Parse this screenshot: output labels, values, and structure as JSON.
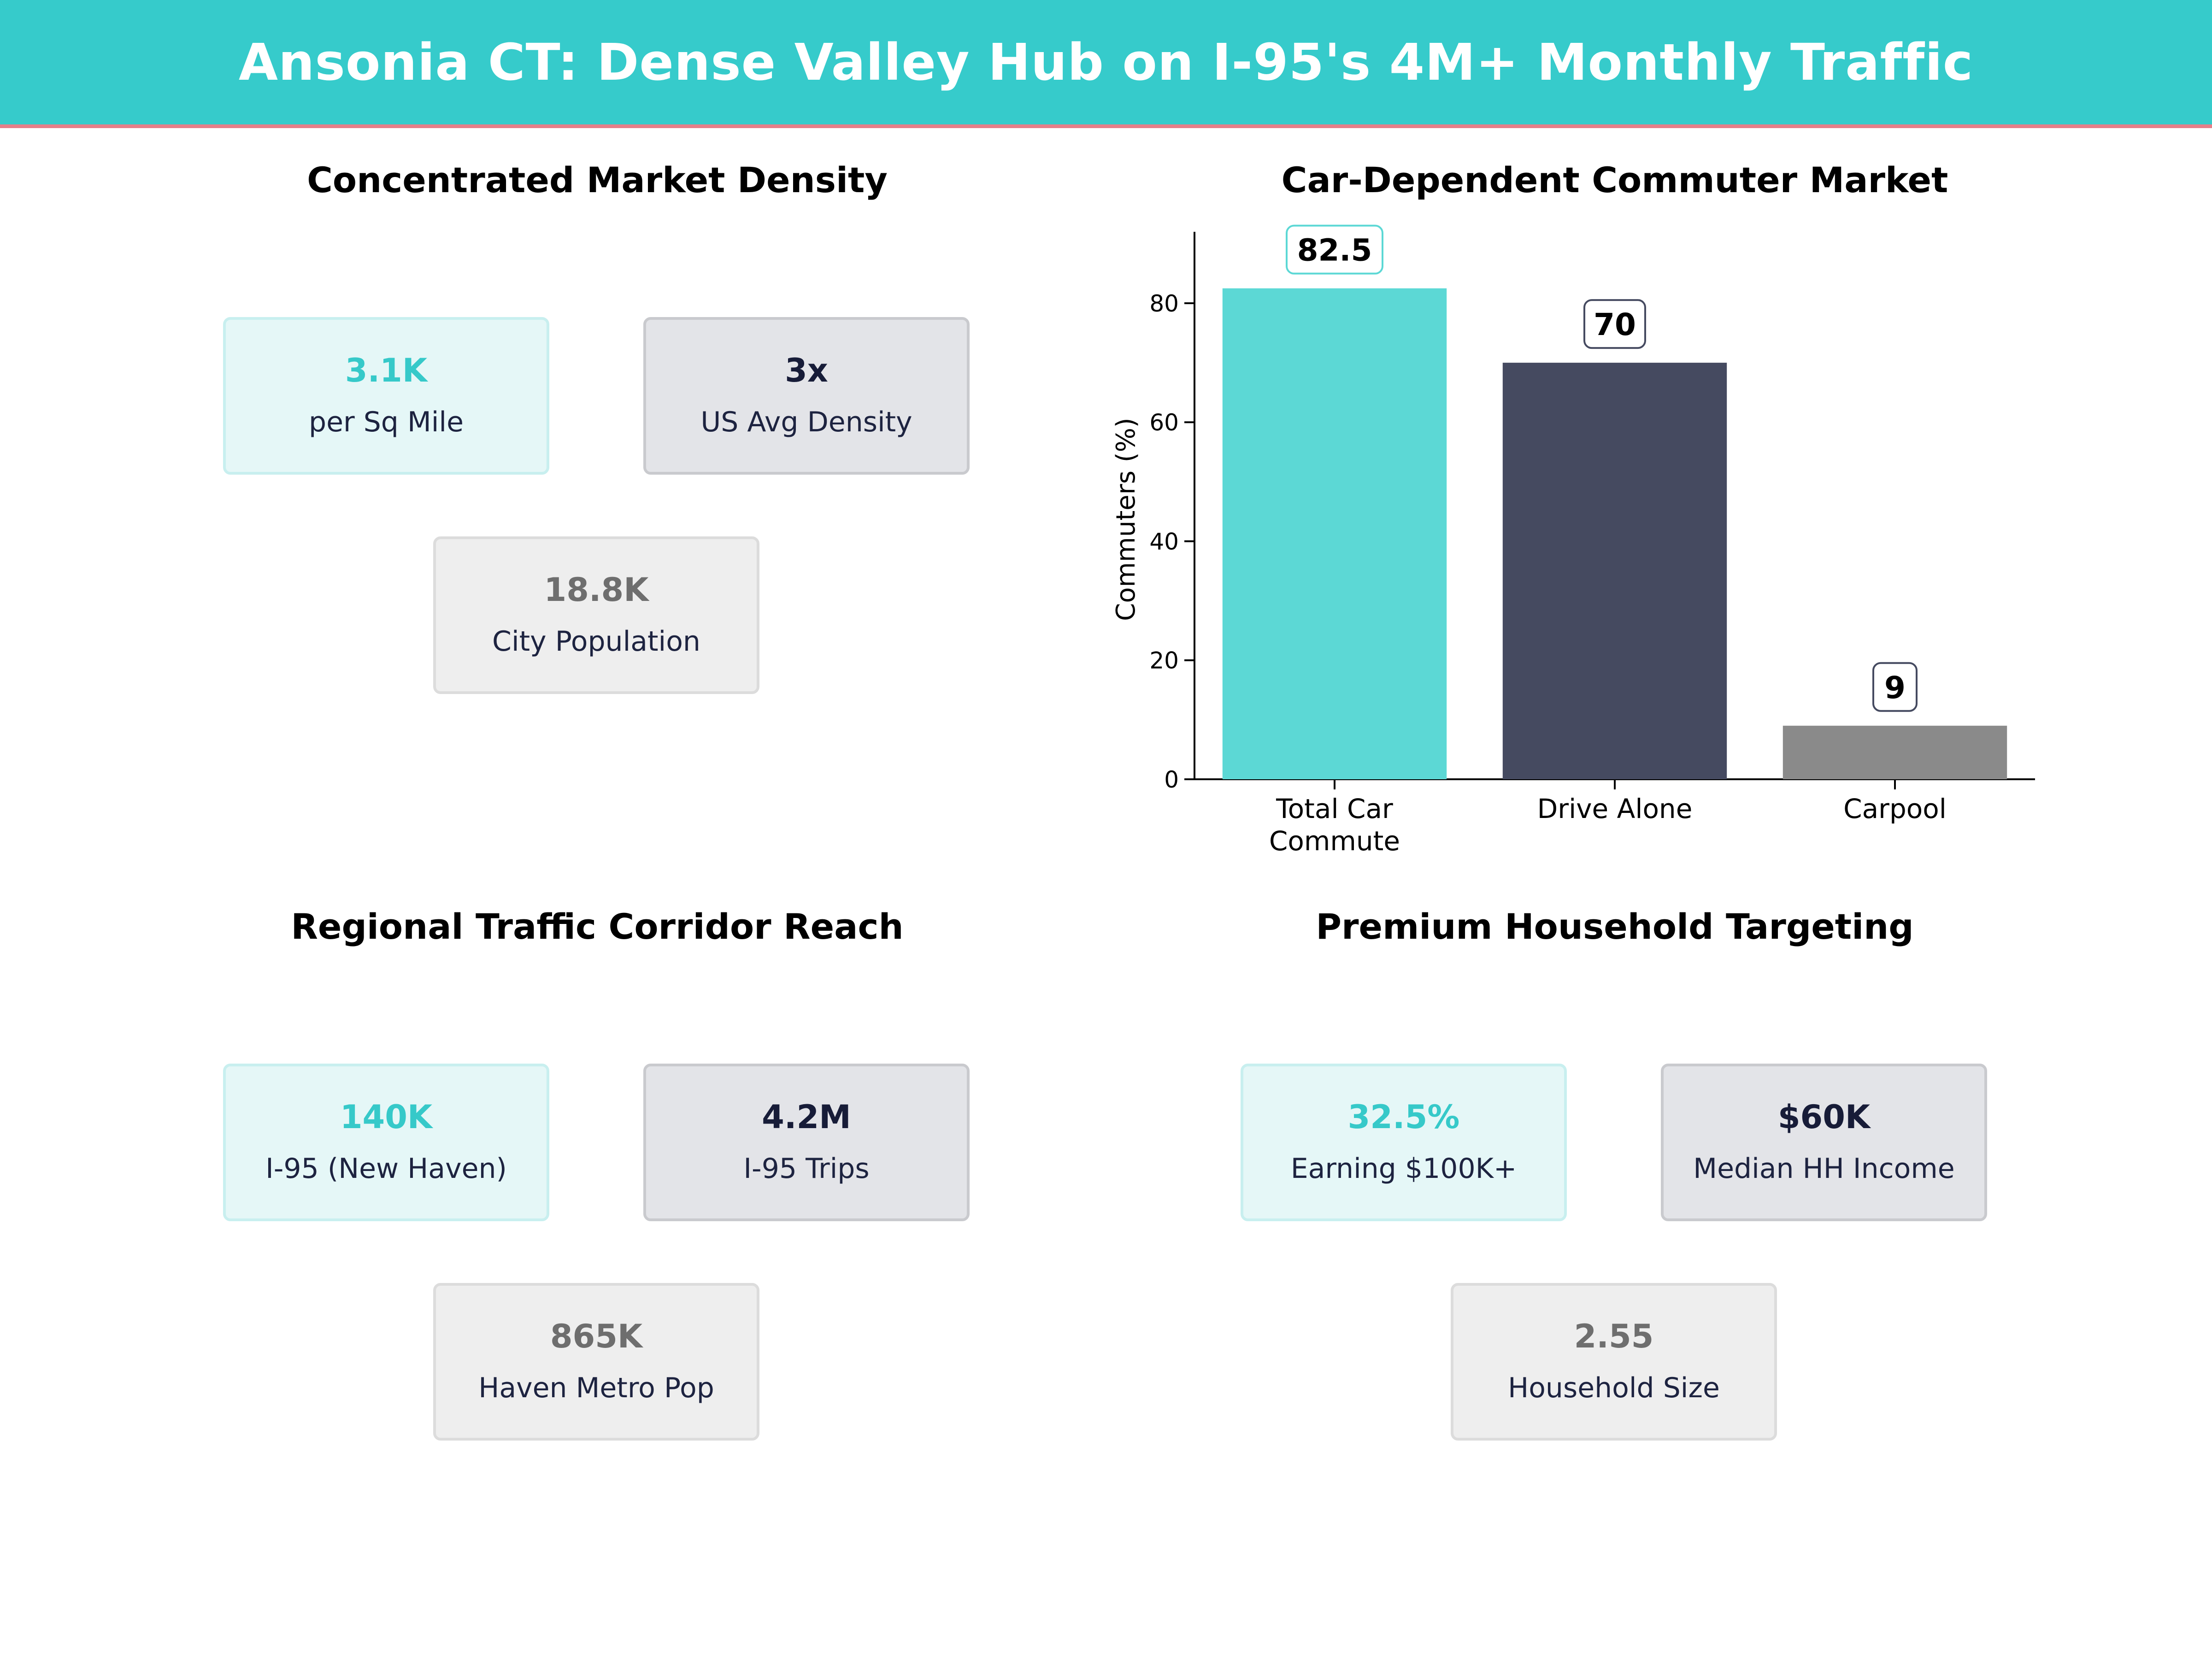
{
  "header": {
    "title": "Ansonia CT: Dense Valley Hub on I-95's 4M+ Monthly Traffic"
  },
  "panels": {
    "density": {
      "title": "Concentrated Market Density",
      "cards": [
        {
          "value": "3.1K",
          "label": "per Sq Mile",
          "style": "teal"
        },
        {
          "value": "3x",
          "label": "US Avg Density",
          "style": "navy"
        },
        {
          "value": "18.8K",
          "label": "City Population",
          "style": "gray"
        }
      ]
    },
    "commute": {
      "title": "Car-Dependent Commuter Market"
    },
    "traffic": {
      "title": "Regional Traffic Corridor Reach",
      "cards": [
        {
          "value": "140K",
          "label": "I-95 (New Haven)",
          "style": "teal"
        },
        {
          "value": "4.2M",
          "label": "I-95 Trips",
          "style": "navy"
        },
        {
          "value": "865K",
          "label": "Haven Metro Pop",
          "style": "gray"
        }
      ]
    },
    "household": {
      "title": "Premium Household Targeting",
      "cards": [
        {
          "value": "32.5%",
          "label": "Earning $100K+",
          "style": "teal"
        },
        {
          "value": "$60K",
          "label": "Median HH Income",
          "style": "navy"
        },
        {
          "value": "2.55",
          "label": "Household Size",
          "style": "gray"
        }
      ]
    }
  },
  "colors": {
    "banner": "#36cbcb",
    "banner_rule": "#e57f89",
    "teal": "#5cd8d5",
    "navy": "#454a60",
    "gray": "#8a8a8a"
  },
  "chart_data": {
    "type": "bar",
    "title": "Car-Dependent Commuter Market",
    "categories": [
      [
        "Total Car",
        "Commute"
      ],
      [
        "Drive Alone"
      ],
      [
        "Carpool"
      ]
    ],
    "values": [
      82.5,
      70,
      9
    ],
    "value_labels": [
      "82.5",
      "70",
      "9"
    ],
    "bar_colors": [
      "#5cd8d5",
      "#454a60",
      "#8a8a8a"
    ],
    "label_border_colors": [
      "#5cd8d5",
      "#454a60",
      "#454a60"
    ],
    "xlabel": "",
    "ylabel": "Commuters (%)",
    "ylim": [
      0,
      92
    ],
    "yticks": [
      0,
      20,
      40,
      60,
      80
    ],
    "grid": false,
    "legend": "none"
  }
}
